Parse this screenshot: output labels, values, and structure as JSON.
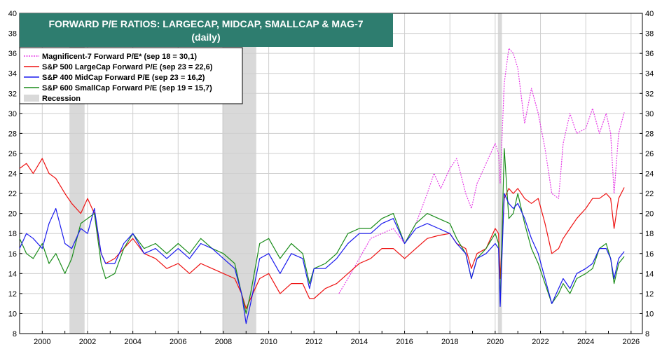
{
  "chart_data": {
    "type": "line",
    "title": "FORWARD P/E RATIOS: LARGECAP, MIDCAP, SMALLCAP & MAG-7",
    "subtitle": "(daily)",
    "xlim": [
      1999.0,
      2026.5
    ],
    "ylim": [
      8,
      40
    ],
    "y_ticks": [
      8,
      10,
      12,
      14,
      16,
      18,
      20,
      22,
      24,
      26,
      28,
      30,
      32,
      34,
      36,
      38,
      40
    ],
    "x_ticks": [
      2000,
      2002,
      2004,
      2006,
      2008,
      2010,
      2012,
      2014,
      2016,
      2018,
      2020,
      2022,
      2024,
      2026
    ],
    "grid": true,
    "legend_placement": "top-left",
    "recessions": [
      {
        "start": 2001.2,
        "end": 2001.87
      },
      {
        "start": 2007.95,
        "end": 2009.45
      },
      {
        "start": 2020.12,
        "end": 2020.3
      }
    ],
    "recession_label": "Recession",
    "recession_color": "#d9d9d9",
    "series": [
      {
        "name": "Magnificent-7 Forward P/E* (sep 18 = 30,1)",
        "color": "#e639e6",
        "dash": true,
        "x": [
          2013.1,
          2013.5,
          2014.0,
          2014.5,
          2015.0,
          2015.5,
          2016.0,
          2016.5,
          2017.0,
          2017.3,
          2017.6,
          2018.0,
          2018.3,
          2018.7,
          2018.95,
          2019.2,
          2019.6,
          2020.0,
          2020.15,
          2020.22,
          2020.4,
          2020.6,
          2020.8,
          2021.0,
          2021.3,
          2021.6,
          2021.9,
          2022.2,
          2022.5,
          2022.8,
          2023.0,
          2023.3,
          2023.6,
          2024.0,
          2024.3,
          2024.6,
          2024.9,
          2025.1,
          2025.25,
          2025.45,
          2025.7
        ],
        "y": [
          12.0,
          13.5,
          15.5,
          17.5,
          18.0,
          18.5,
          17.0,
          19.0,
          22.0,
          24.0,
          22.5,
          24.5,
          25.5,
          22.0,
          20.5,
          23.0,
          25.0,
          27.0,
          26.0,
          23.0,
          33.0,
          36.5,
          36.0,
          34.5,
          29.0,
          32.5,
          30.0,
          26.5,
          22.0,
          21.5,
          27.0,
          30.0,
          28.0,
          28.5,
          30.5,
          28.0,
          30.0,
          28.0,
          22.0,
          28.0,
          30.1
        ]
      },
      {
        "name": "S&P 500 LargeCap Forward P/E (sep 23 = 22,6)",
        "color": "#ee1111",
        "dash": false,
        "x": [
          1999.0,
          1999.3,
          1999.6,
          2000.0,
          2000.3,
          2000.6,
          2001.0,
          2001.3,
          2001.7,
          2002.0,
          2002.3,
          2002.6,
          2002.8,
          2003.2,
          2003.6,
          2004.0,
          2004.5,
          2005.0,
          2005.5,
          2006.0,
          2006.5,
          2007.0,
          2007.5,
          2008.0,
          2008.5,
          2008.8,
          2009.0,
          2009.2,
          2009.6,
          2010.0,
          2010.5,
          2011.0,
          2011.5,
          2011.8,
          2012.0,
          2012.5,
          2013.0,
          2013.5,
          2014.0,
          2014.5,
          2015.0,
          2015.5,
          2016.0,
          2016.5,
          2017.0,
          2017.5,
          2018.0,
          2018.3,
          2018.7,
          2018.95,
          2019.2,
          2019.6,
          2020.0,
          2020.15,
          2020.22,
          2020.4,
          2020.6,
          2020.8,
          2021.0,
          2021.3,
          2021.6,
          2021.9,
          2022.2,
          2022.5,
          2022.8,
          2023.0,
          2023.3,
          2023.6,
          2024.0,
          2024.3,
          2024.6,
          2024.9,
          2025.1,
          2025.25,
          2025.45,
          2025.7
        ],
        "y": [
          24.5,
          25.0,
          24.0,
          25.5,
          24.0,
          23.5,
          22.0,
          21.0,
          20.0,
          21.5,
          20.0,
          16.0,
          15.0,
          15.5,
          16.5,
          17.5,
          16.0,
          15.5,
          14.5,
          15.0,
          14.0,
          15.0,
          14.5,
          14.0,
          13.5,
          12.0,
          10.5,
          11.5,
          13.5,
          14.0,
          12.0,
          13.0,
          13.0,
          11.5,
          11.5,
          12.5,
          13.0,
          14.0,
          15.0,
          15.5,
          16.5,
          16.5,
          15.5,
          16.5,
          17.5,
          17.8,
          18.0,
          17.0,
          16.5,
          14.5,
          16.0,
          16.5,
          18.5,
          18.0,
          13.5,
          21.5,
          22.5,
          22.0,
          22.5,
          21.5,
          21.0,
          21.5,
          19.0,
          16.0,
          16.5,
          17.5,
          18.5,
          19.5,
          20.5,
          21.5,
          21.5,
          22.0,
          21.5,
          18.5,
          21.5,
          22.6
        ]
      },
      {
        "name": "S&P 400 MidCap Forward P/E (sep 23 = 16,2)",
        "color": "#1a1aee",
        "dash": false,
        "x": [
          1999.0,
          1999.3,
          1999.6,
          2000.0,
          2000.3,
          2000.6,
          2001.0,
          2001.3,
          2001.7,
          2002.0,
          2002.3,
          2002.6,
          2002.8,
          2003.2,
          2003.6,
          2004.0,
          2004.5,
          2005.0,
          2005.5,
          2006.0,
          2006.5,
          2007.0,
          2007.5,
          2008.0,
          2008.5,
          2008.8,
          2009.0,
          2009.2,
          2009.6,
          2010.0,
          2010.5,
          2011.0,
          2011.5,
          2011.8,
          2012.0,
          2012.5,
          2013.0,
          2013.5,
          2014.0,
          2014.5,
          2015.0,
          2015.5,
          2016.0,
          2016.5,
          2017.0,
          2017.5,
          2018.0,
          2018.3,
          2018.7,
          2018.95,
          2019.2,
          2019.6,
          2020.0,
          2020.15,
          2020.22,
          2020.4,
          2020.6,
          2020.8,
          2021.0,
          2021.3,
          2021.6,
          2021.9,
          2022.2,
          2022.5,
          2022.8,
          2023.0,
          2023.3,
          2023.6,
          2024.0,
          2024.3,
          2024.6,
          2024.9,
          2025.1,
          2025.25,
          2025.45,
          2025.7
        ],
        "y": [
          16.5,
          18.0,
          17.5,
          16.5,
          19.0,
          20.5,
          17.0,
          16.5,
          18.5,
          18.0,
          20.5,
          16.0,
          15.0,
          15.0,
          17.0,
          18.0,
          16.0,
          16.5,
          15.5,
          16.5,
          15.5,
          17.0,
          16.5,
          15.5,
          14.5,
          12.0,
          9.0,
          11.0,
          15.5,
          16.0,
          14.0,
          16.0,
          15.5,
          12.5,
          14.5,
          14.5,
          15.5,
          17.0,
          18.0,
          18.0,
          19.0,
          19.5,
          17.0,
          18.5,
          19.0,
          18.5,
          18.0,
          17.0,
          16.0,
          13.5,
          15.5,
          16.0,
          17.0,
          16.5,
          10.7,
          22.0,
          21.0,
          20.5,
          21.0,
          19.5,
          17.5,
          16.0,
          13.5,
          11.0,
          12.5,
          13.5,
          12.5,
          14.0,
          14.5,
          15.0,
          16.5,
          16.5,
          15.5,
          13.5,
          15.5,
          16.2
        ]
      },
      {
        "name": "S&P 600 SmallCap Forward P/E (sep 19 = 15,7)",
        "color": "#1a8c1a",
        "dash": false,
        "x": [
          1999.0,
          1999.3,
          1999.6,
          2000.0,
          2000.3,
          2000.6,
          2001.0,
          2001.3,
          2001.7,
          2002.0,
          2002.3,
          2002.6,
          2002.8,
          2003.2,
          2003.6,
          2004.0,
          2004.5,
          2005.0,
          2005.5,
          2006.0,
          2006.5,
          2007.0,
          2007.5,
          2008.0,
          2008.5,
          2008.8,
          2009.0,
          2009.2,
          2009.6,
          2010.0,
          2010.5,
          2011.0,
          2011.5,
          2011.8,
          2012.0,
          2012.5,
          2013.0,
          2013.5,
          2014.0,
          2014.5,
          2015.0,
          2015.5,
          2016.0,
          2016.5,
          2017.0,
          2017.5,
          2018.0,
          2018.3,
          2018.7,
          2018.95,
          2019.2,
          2019.6,
          2020.0,
          2020.15,
          2020.22,
          2020.4,
          2020.6,
          2020.8,
          2021.0,
          2021.3,
          2021.6,
          2021.9,
          2022.2,
          2022.5,
          2022.8,
          2023.0,
          2023.3,
          2023.6,
          2024.0,
          2024.3,
          2024.6,
          2024.9,
          2025.1,
          2025.25,
          2025.45,
          2025.7
        ],
        "y": [
          17.5,
          16.0,
          15.5,
          17.0,
          15.0,
          16.0,
          14.0,
          15.5,
          19.0,
          19.5,
          20.0,
          15.0,
          13.5,
          14.0,
          16.5,
          18.0,
          16.5,
          17.0,
          16.0,
          17.0,
          16.0,
          17.5,
          16.5,
          16.0,
          15.0,
          12.0,
          10.0,
          12.0,
          17.0,
          17.5,
          15.5,
          17.0,
          16.0,
          13.0,
          14.5,
          15.0,
          16.0,
          18.0,
          18.5,
          18.5,
          19.5,
          20.0,
          17.0,
          19.0,
          20.0,
          19.5,
          19.0,
          17.5,
          16.0,
          13.5,
          15.5,
          16.5,
          18.0,
          17.0,
          11.0,
          26.5,
          19.5,
          20.0,
          22.0,
          19.0,
          16.5,
          15.0,
          13.0,
          11.0,
          12.0,
          13.0,
          12.0,
          13.5,
          14.0,
          14.5,
          16.5,
          17.0,
          15.5,
          13.0,
          15.0,
          15.7
        ]
      }
    ]
  }
}
